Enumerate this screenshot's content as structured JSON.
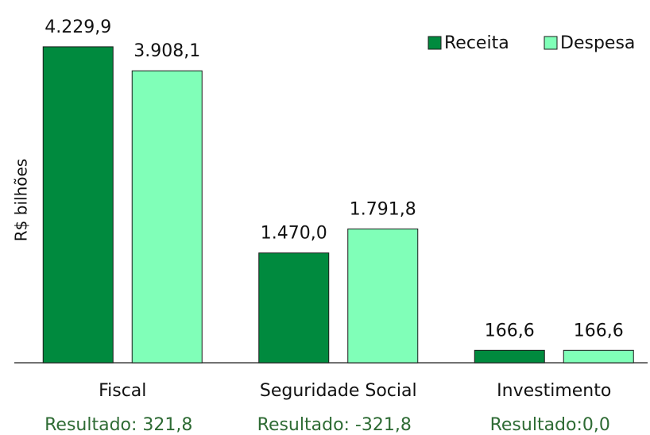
{
  "chart_data": {
    "type": "bar",
    "y_label": "R$ bilhões",
    "categories": [
      "Fiscal",
      "Seguridade Social",
      "Investimento"
    ],
    "series": [
      {
        "name": "Receita",
        "color": "#008a3e",
        "values": [
          4229.9,
          1470.0,
          166.6
        ],
        "value_labels": [
          "4.229,9",
          "1.470,0",
          "166,6"
        ]
      },
      {
        "name": "Despesa",
        "color": "#80ffb8",
        "values": [
          3908.1,
          1791.8,
          166.6
        ],
        "value_labels": [
          "3.908,1",
          "1.791,8",
          "166,6"
        ]
      }
    ],
    "annotations": [
      "Resultado: 321,8",
      "Resultado: -321,8",
      "Resultado:0,0"
    ],
    "ylim": [
      0,
      4500
    ],
    "legend": "top-right"
  }
}
